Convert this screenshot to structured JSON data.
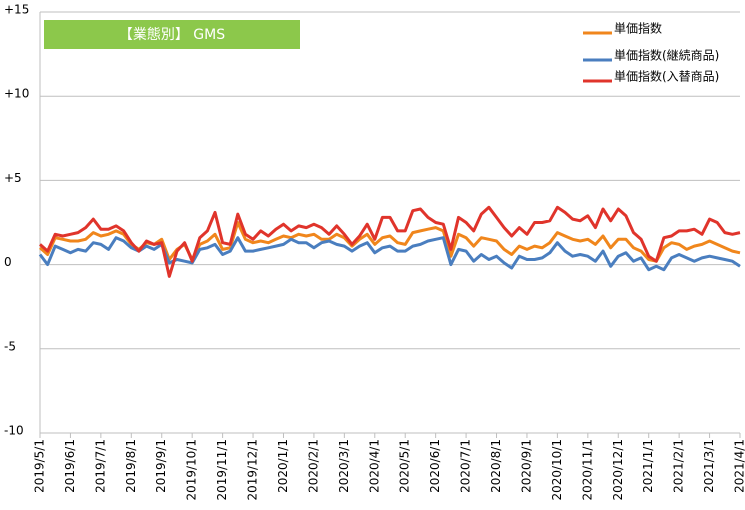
{
  "chart_data": {
    "type": "line",
    "annotation": "【業態別】 GMS",
    "categories": [
      "2019/5/1",
      null,
      null,
      null,
      "2019/6/1",
      null,
      null,
      null,
      "2019/7/1",
      null,
      null,
      null,
      "2019/8/1",
      null,
      null,
      null,
      "2019/9/1",
      null,
      null,
      null,
      "2019/10/1",
      null,
      null,
      null,
      "2019/11/1",
      null,
      null,
      null,
      "2019/12/1",
      null,
      null,
      null,
      "2020/1/1",
      null,
      null,
      null,
      "2020/2/1",
      null,
      null,
      null,
      "2020/3/1",
      null,
      null,
      null,
      "2020/4/1",
      null,
      null,
      null,
      "2020/5/1",
      null,
      null,
      null,
      "2020/6/1",
      null,
      null,
      null,
      "2020/7/1",
      null,
      null,
      null,
      "2020/8/1",
      null,
      null,
      null,
      "2020/9/1",
      null,
      null,
      null,
      "2020/10/1",
      null,
      null,
      null,
      "2020/11/1",
      null,
      null,
      null,
      "2020/12/1",
      null,
      null,
      null,
      "2021/1/1",
      null,
      null,
      null,
      "2021/2/1",
      null,
      null,
      null,
      "2021/3/1",
      null,
      null,
      null,
      "2021/4/1"
    ],
    "series": [
      {
        "name": "単価指数",
        "color": "#f0861c",
        "values": [
          1.0,
          0.6,
          1.6,
          1.5,
          1.4,
          1.4,
          1.5,
          1.9,
          1.7,
          1.8,
          2.0,
          1.8,
          1.2,
          0.9,
          1.3,
          1.2,
          1.5,
          0.3,
          0.9,
          1.2,
          0.3,
          1.2,
          1.4,
          1.8,
          0.9,
          1.0,
          2.5,
          1.5,
          1.3,
          1.4,
          1.3,
          1.5,
          1.7,
          1.6,
          1.8,
          1.7,
          1.8,
          1.5,
          1.5,
          1.8,
          1.6,
          1.1,
          1.5,
          1.8,
          1.2,
          1.6,
          1.7,
          1.3,
          1.2,
          1.9,
          2.0,
          2.1,
          2.2,
          2.0,
          0.5,
          1.8,
          1.6,
          1.1,
          1.6,
          1.5,
          1.4,
          0.9,
          0.6,
          1.1,
          0.9,
          1.1,
          1.0,
          1.3,
          1.9,
          1.7,
          1.5,
          1.4,
          1.5,
          1.2,
          1.7,
          1.0,
          1.5,
          1.5,
          1.0,
          0.8,
          0.3,
          0.2,
          1.0,
          1.3,
          1.2,
          0.9,
          1.1,
          1.2,
          1.4,
          1.2,
          1.0,
          0.8,
          0.7
        ]
      },
      {
        "name": "単価指数(継続商品)",
        "color": "#4a7ebf",
        "values": [
          0.6,
          0.0,
          1.1,
          0.9,
          0.7,
          0.9,
          0.8,
          1.3,
          1.2,
          0.9,
          1.6,
          1.4,
          1.0,
          0.8,
          1.1,
          0.9,
          1.2,
          0.1,
          0.3,
          0.2,
          0.1,
          0.9,
          1.0,
          1.2,
          0.6,
          0.8,
          1.6,
          0.8,
          0.8,
          0.9,
          1.0,
          1.1,
          1.2,
          1.5,
          1.3,
          1.3,
          1.0,
          1.3,
          1.4,
          1.2,
          1.1,
          0.8,
          1.1,
          1.3,
          0.7,
          1.0,
          1.1,
          0.8,
          0.8,
          1.1,
          1.2,
          1.4,
          1.5,
          1.6,
          0.0,
          0.9,
          0.8,
          0.2,
          0.6,
          0.3,
          0.5,
          0.1,
          -0.2,
          0.5,
          0.3,
          0.3,
          0.4,
          0.7,
          1.3,
          0.8,
          0.5,
          0.6,
          0.5,
          0.2,
          0.8,
          -0.1,
          0.5,
          0.7,
          0.2,
          0.4,
          -0.3,
          -0.1,
          -0.3,
          0.4,
          0.6,
          0.4,
          0.2,
          0.4,
          0.5,
          0.4,
          0.3,
          0.2,
          -0.1
        ]
      },
      {
        "name": "単価指数(入替商品)",
        "color": "#e0342b",
        "values": [
          1.2,
          0.8,
          1.8,
          1.7,
          1.8,
          1.9,
          2.2,
          2.7,
          2.1,
          2.1,
          2.3,
          2.0,
          1.3,
          0.8,
          1.4,
          1.2,
          1.3,
          -0.7,
          0.8,
          1.3,
          0.2,
          1.6,
          2.0,
          3.1,
          1.3,
          1.2,
          3.0,
          1.8,
          1.5,
          2.0,
          1.7,
          2.1,
          2.4,
          2.0,
          2.3,
          2.2,
          2.4,
          2.2,
          1.8,
          2.3,
          1.8,
          1.2,
          1.7,
          2.4,
          1.5,
          2.8,
          2.8,
          2.0,
          2.0,
          3.2,
          3.3,
          2.8,
          2.5,
          2.4,
          0.9,
          2.8,
          2.5,
          2.0,
          3.0,
          3.4,
          2.8,
          2.2,
          1.7,
          2.2,
          1.8,
          2.5,
          2.5,
          2.6,
          3.4,
          3.1,
          2.7,
          2.6,
          2.9,
          2.2,
          3.3,
          2.6,
          3.3,
          2.9,
          1.9,
          1.5,
          0.5,
          0.2,
          1.6,
          1.7,
          2.0,
          2.0,
          2.1,
          1.8,
          2.7,
          2.5,
          1.9,
          1.8,
          1.9
        ]
      }
    ],
    "ylim": [
      -10,
      15
    ],
    "yticks": [
      -10,
      -5,
      0,
      {
        "value": 5,
        "label": "+5"
      },
      {
        "value": 10,
        "label": "+10"
      },
      {
        "value": 15,
        "label": "+15"
      }
    ],
    "grid": true
  }
}
